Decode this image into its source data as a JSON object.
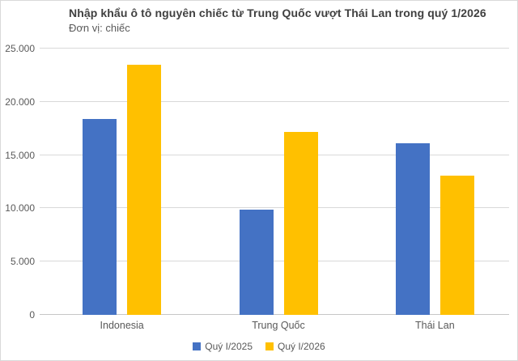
{
  "chart_data": {
    "type": "bar",
    "title": "Nhập khẩu ô tô nguyên chiếc từ Trung Quốc vượt Thái Lan trong quý 1/2026",
    "subtitle": "Đơn vị: chiếc",
    "categories": [
      "Indonesia",
      "Trung Quốc",
      "Thái Lan"
    ],
    "series": [
      {
        "name": "Quý I/2025",
        "color": "#4472C4",
        "values": [
          18400,
          9900,
          16100
        ]
      },
      {
        "name": "Quý I/2026",
        "color": "#FFC000",
        "values": [
          23450,
          17200,
          13100
        ]
      }
    ],
    "ylim": [
      0,
      25000
    ],
    "ytick_step": 5000,
    "ytick_labels": [
      "0",
      "5.000",
      "10.000",
      "15.000",
      "20.000",
      "25.000"
    ],
    "grid": true,
    "legend_position": "bottom",
    "colors": {
      "gridline": "#d9d9d9",
      "axis": "#c6c6c6",
      "tick_text": "#595959",
      "title_text": "#404040"
    }
  }
}
